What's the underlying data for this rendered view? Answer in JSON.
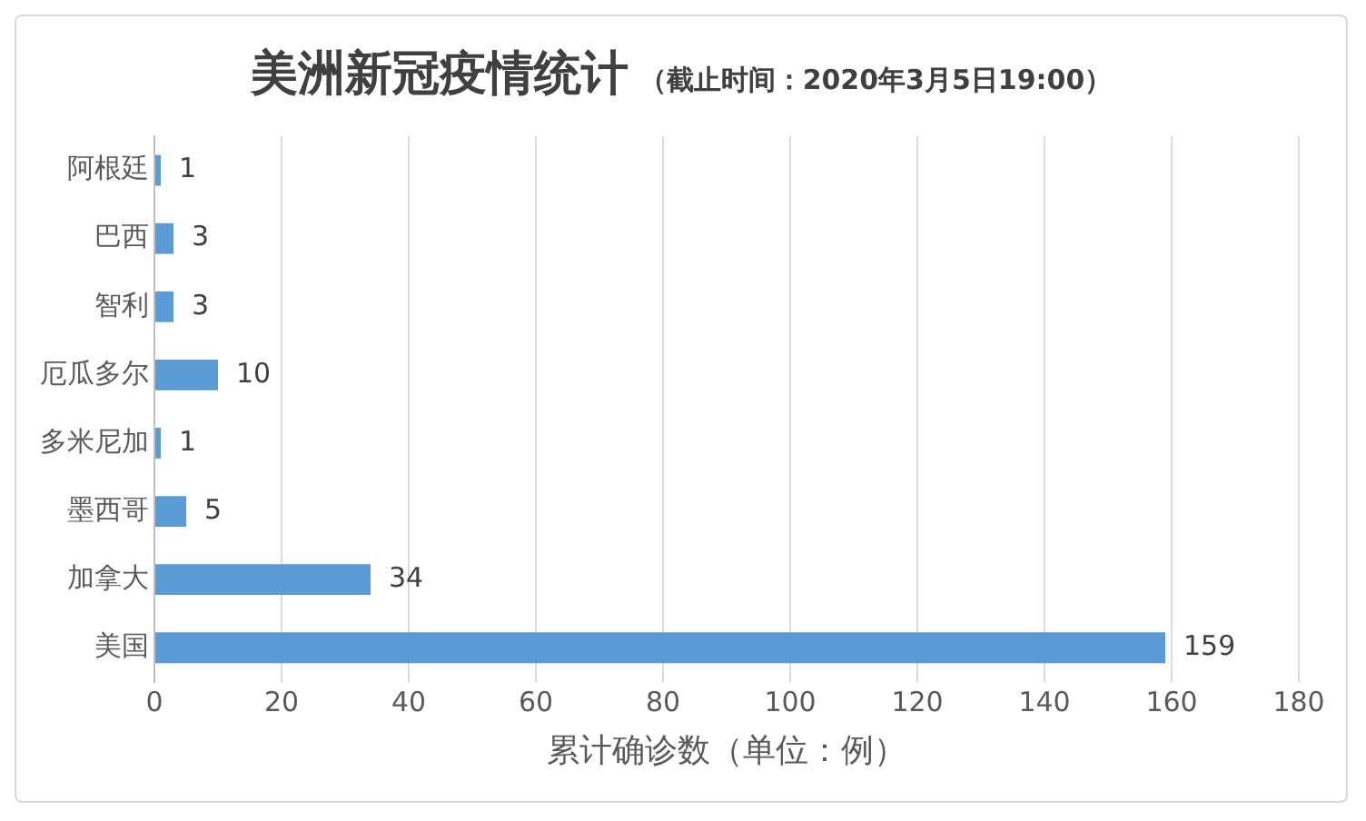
{
  "chart_data": {
    "type": "bar",
    "orientation": "horizontal",
    "title": "美洲新冠疫情统计",
    "subtitle": "（截止时间：2020年3月5日19:00）",
    "xlabel": "累计确诊数（单位：例）",
    "categories": [
      "阿根廷",
      "巴西",
      "智利",
      "厄瓜多尔",
      "多米尼加",
      "墨西哥",
      "加拿大",
      "美国"
    ],
    "values": [
      1,
      3,
      3,
      10,
      1,
      5,
      34,
      159
    ],
    "color": "#5b9bd5",
    "xlim": [
      0,
      180
    ],
    "xticks": [
      0,
      20,
      40,
      60,
      80,
      100,
      120,
      140,
      160,
      180
    ],
    "grid": "x",
    "data_labels": true
  }
}
